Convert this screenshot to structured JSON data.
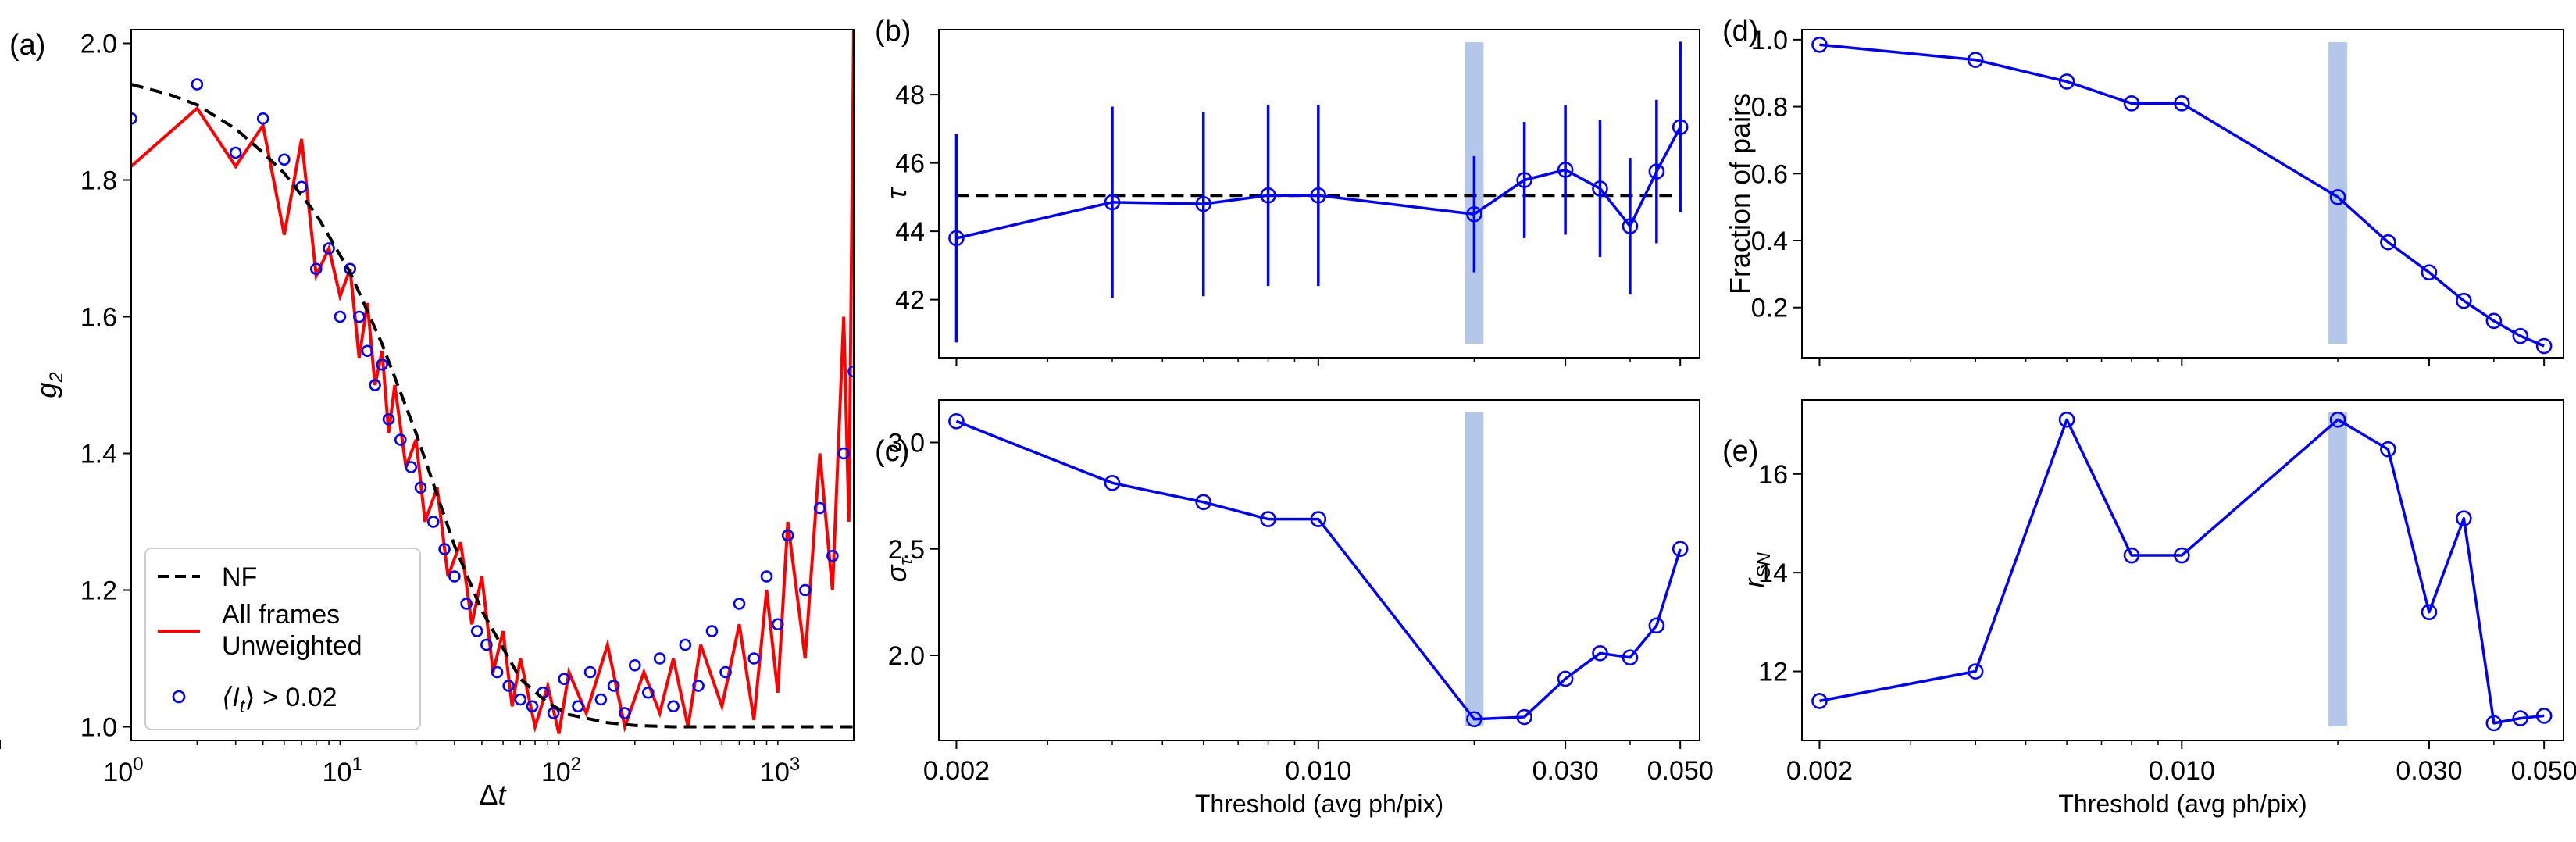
{
  "figure": {
    "colors": {
      "black": "#000000",
      "red": "#ff0000",
      "blue": "#0000ff",
      "band": "#b4c7e9"
    }
  },
  "chart_data": [
    {
      "panel": "(a)",
      "type": "line",
      "xscale": "log",
      "xlim": [
        1,
        2000
      ],
      "ylim": [
        0.98,
        2.02
      ],
      "xlabel": "Δt",
      "ylabel": "g2",
      "xticks": [
        {
          "value": 1,
          "label": "10^0"
        },
        {
          "value": 10,
          "label": "10^1"
        },
        {
          "value": 100,
          "label": "10^2"
        },
        {
          "value": 1000,
          "label": "10^3"
        }
      ],
      "yticks": [
        1.0,
        1.2,
        1.4,
        1.6,
        1.8,
        2.0
      ],
      "ytick_labels": [
        "1.0",
        "1.2",
        "1.4",
        "1.6",
        "1.8",
        "2.0"
      ],
      "legend_placement": "lower-left",
      "legend": [
        {
          "name": "NF",
          "lines": [
            "NF"
          ],
          "style": "dashed",
          "color": "#000000"
        },
        {
          "name": "All frames Unweighted",
          "lines": [
            "All frames",
            "Unweighted"
          ],
          "style": "solid",
          "color": "#ff0000"
        },
        {
          "name": "⟨I_t⟩ > 0.02",
          "lines": [
            "⟨I",
            "t",
            "⟩ > 0.02"
          ],
          "style": "circle",
          "color": "#0000ff"
        }
      ],
      "series": [
        {
          "name": "NF",
          "style": "dashed",
          "x": [
            1,
            1.5,
            2,
            3,
            4,
            5,
            7,
            10,
            14,
            20,
            30,
            40,
            60,
            80,
            100,
            150,
            200,
            300,
            500,
            1000,
            2000
          ],
          "y": [
            1.94,
            1.925,
            1.91,
            1.875,
            1.84,
            1.81,
            1.75,
            1.665,
            1.56,
            1.43,
            1.265,
            1.17,
            1.07,
            1.035,
            1.018,
            1.006,
            1.002,
            1.0,
            1.0,
            1.0,
            1.0
          ]
        },
        {
          "name": "All frames Unweighted",
          "style": "solid",
          "x": [
            1,
            2,
            3,
            4,
            5,
            6,
            7,
            8,
            9,
            10,
            11,
            12,
            13,
            14,
            15,
            16,
            18,
            20,
            22,
            25,
            28,
            32,
            36,
            40,
            45,
            50,
            55,
            60,
            70,
            80,
            90,
            100,
            120,
            150,
            180,
            220,
            260,
            300,
            350,
            400,
            500,
            600,
            700,
            800,
            900,
            1000,
            1200,
            1400,
            1600,
            1800,
            1900,
            2000
          ],
          "y": [
            1.82,
            1.905,
            1.82,
            1.88,
            1.72,
            1.86,
            1.66,
            1.7,
            1.63,
            1.67,
            1.54,
            1.62,
            1.5,
            1.55,
            1.43,
            1.5,
            1.38,
            1.42,
            1.3,
            1.35,
            1.22,
            1.27,
            1.15,
            1.22,
            1.08,
            1.14,
            1.03,
            1.1,
            1.0,
            1.06,
            0.99,
            1.08,
            1.02,
            1.12,
            1.0,
            1.08,
            1.02,
            1.1,
            1.0,
            1.12,
            1.03,
            1.15,
            1.01,
            1.2,
            1.05,
            1.3,
            1.1,
            1.4,
            1.2,
            1.6,
            1.3,
            2.02
          ]
        },
        {
          "name": "⟨I_t⟩ > 0.02",
          "style": "scatter",
          "x": [
            1,
            2,
            3,
            4,
            5,
            6,
            7,
            8,
            9,
            10,
            11,
            12,
            13,
            14,
            15,
            17,
            19,
            21,
            24,
            27,
            30,
            34,
            38,
            42,
            47,
            53,
            60,
            68,
            76,
            85,
            95,
            110,
            125,
            140,
            160,
            180,
            200,
            230,
            260,
            300,
            340,
            390,
            450,
            520,
            600,
            700,
            800,
            900,
            1000,
            1200,
            1400,
            1600,
            1800,
            2000
          ],
          "y": [
            1.89,
            1.94,
            1.84,
            1.89,
            1.83,
            1.79,
            1.67,
            1.7,
            1.6,
            1.67,
            1.6,
            1.55,
            1.5,
            1.53,
            1.45,
            1.42,
            1.38,
            1.35,
            1.3,
            1.26,
            1.22,
            1.18,
            1.14,
            1.12,
            1.08,
            1.06,
            1.04,
            1.03,
            1.05,
            1.02,
            1.07,
            1.03,
            1.08,
            1.04,
            1.06,
            1.02,
            1.09,
            1.05,
            1.1,
            1.03,
            1.12,
            1.06,
            1.14,
            1.08,
            1.18,
            1.1,
            1.22,
            1.15,
            1.28,
            1.2,
            1.32,
            1.25,
            1.4,
            1.52
          ]
        }
      ]
    },
    {
      "panel": "(b)",
      "type": "line",
      "xscale": "log",
      "xlim": [
        0.00185,
        0.0545
      ],
      "ylim": [
        40.3,
        49.9
      ],
      "ylabel": "τ",
      "xticks": [
        0.002,
        0.01,
        0.03,
        0.05
      ],
      "yticks": [
        42,
        44,
        46,
        48
      ],
      "ytick_labels": [
        "42",
        "44",
        "46",
        "48"
      ],
      "reference_line": 45.05,
      "highlight_x": 0.02,
      "series": [
        {
          "name": "tau",
          "x": [
            0.002,
            0.004,
            0.006,
            0.008,
            0.01,
            0.02,
            0.025,
            0.03,
            0.035,
            0.04,
            0.045,
            0.05
          ],
          "y": [
            43.8,
            44.85,
            44.8,
            45.05,
            45.05,
            44.5,
            45.5,
            45.8,
            45.25,
            44.15,
            45.75,
            47.05
          ],
          "err": [
            3.05,
            2.8,
            2.7,
            2.65,
            2.65,
            1.7,
            1.7,
            1.9,
            2.0,
            2.0,
            2.1,
            2.5
          ]
        }
      ]
    },
    {
      "panel": "(c)",
      "type": "line",
      "xscale": "log",
      "xlim": [
        0.00185,
        0.0545
      ],
      "ylim": [
        1.6,
        3.2
      ],
      "xlabel": "Threshold (avg ph/pix)",
      "ylabel": "στ",
      "xticks": [
        0.002,
        0.01,
        0.03,
        0.05
      ],
      "xtick_labels": [
        "0.002",
        "0.010",
        "0.030",
        "0.050"
      ],
      "yticks": [
        2.0,
        2.5,
        3.0
      ],
      "ytick_labels": [
        "2.0",
        "2.5",
        "3.0"
      ],
      "highlight_x": 0.02,
      "series": [
        {
          "name": "sigma_tau",
          "x": [
            0.002,
            0.004,
            0.006,
            0.008,
            0.01,
            0.02,
            0.025,
            0.03,
            0.035,
            0.04,
            0.045,
            0.05
          ],
          "y": [
            3.1,
            2.81,
            2.72,
            2.64,
            2.64,
            1.7,
            1.71,
            1.89,
            2.01,
            1.99,
            2.14,
            2.5
          ]
        }
      ]
    },
    {
      "panel": "(d)",
      "type": "line",
      "xscale": "log",
      "xlim": [
        0.00185,
        0.0545
      ],
      "ylim": [
        0.05,
        1.03
      ],
      "ylabel": "Fraction of pairs",
      "xticks": [
        0.002,
        0.01,
        0.03,
        0.05
      ],
      "yticks": [
        0.2,
        0.4,
        0.6,
        0.8,
        1.0
      ],
      "ytick_labels": [
        "0.2",
        "0.4",
        "0.6",
        "0.8",
        "1.0"
      ],
      "highlight_x": 0.02,
      "series": [
        {
          "name": "fraction",
          "x": [
            0.002,
            0.004,
            0.006,
            0.008,
            0.01,
            0.02,
            0.025,
            0.03,
            0.035,
            0.04,
            0.045,
            0.05
          ],
          "y": [
            0.985,
            0.94,
            0.875,
            0.81,
            0.81,
            0.53,
            0.395,
            0.305,
            0.22,
            0.16,
            0.115,
            0.085
          ]
        }
      ]
    },
    {
      "panel": "(e)",
      "type": "line",
      "xscale": "log",
      "xlim": [
        0.00185,
        0.0545
      ],
      "ylim": [
        10.6,
        17.5
      ],
      "xlabel": "Threshold (avg ph/pix)",
      "ylabel": "rSN",
      "xticks": [
        0.002,
        0.01,
        0.03,
        0.05
      ],
      "xtick_labels": [
        "0.002",
        "0.010",
        "0.030",
        "0.050"
      ],
      "yticks": [
        12,
        14,
        16
      ],
      "ytick_labels": [
        "12",
        "14",
        "16"
      ],
      "highlight_x": 0.02,
      "series": [
        {
          "name": "r_SN",
          "x": [
            0.002,
            0.004,
            0.006,
            0.008,
            0.01,
            0.02,
            0.025,
            0.03,
            0.035,
            0.04,
            0.045,
            0.05
          ],
          "y": [
            11.4,
            12.0,
            17.1,
            14.35,
            14.35,
            17.1,
            16.5,
            13.2,
            15.1,
            10.95,
            11.05,
            11.1
          ]
        }
      ]
    }
  ]
}
